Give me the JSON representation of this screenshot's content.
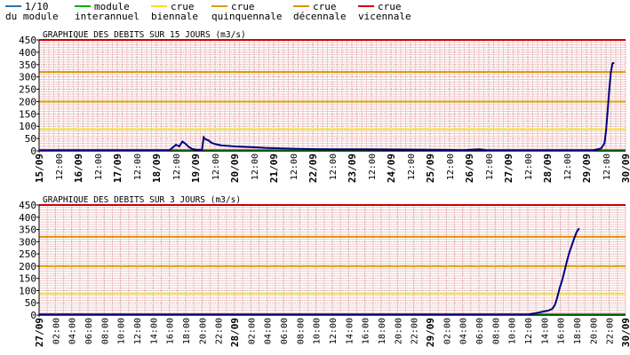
{
  "colors": {
    "module_10": "#1f77b4",
    "module": "#00b000",
    "biennale": "#f0e030",
    "quinquennale": "#d8a000",
    "decennale": "#e09000",
    "vicennale": "#cc0000",
    "flow": "#000080",
    "grid_major": "#d09090",
    "grid_minor": "#f0c8c8"
  },
  "legend": [
    {
      "line1": "1/10",
      "line2": "du module",
      "color_key": "module_10"
    },
    {
      "line1": "module",
      "line2": "interannuel",
      "color_key": "module"
    },
    {
      "line1": "crue",
      "line2": "biennale",
      "color_key": "biennale"
    },
    {
      "line1": "crue",
      "line2": "quinquennale",
      "color_key": "quinquennale"
    },
    {
      "line1": "crue",
      "line2": "décennale",
      "color_key": "decennale"
    },
    {
      "line1": "crue",
      "line2": "vicennale",
      "color_key": "vicennale"
    }
  ],
  "chart_data": [
    {
      "type": "line",
      "title": "GRAPHIQUE DES DEBITS SUR 15 JOURS (m3/s)",
      "ylim": [
        0,
        450
      ],
      "yticks": [
        0,
        50,
        100,
        150,
        200,
        250,
        300,
        350,
        400,
        450
      ],
      "xlim_hours": [
        0,
        360
      ],
      "xtick_labels": [
        "15/09",
        "12:00",
        "16/09",
        "12:00",
        "17/09",
        "12:00",
        "18/09",
        "12:00",
        "19/09",
        "12:00",
        "20/09",
        "12:00",
        "21/09",
        "12:00",
        "22/09",
        "12:00",
        "23/09",
        "12:00",
        "24/09",
        "12:00",
        "25/09",
        "12:00",
        "26/09",
        "12:00",
        "27/09",
        "12:00",
        "28/09",
        "12:00",
        "29/09",
        "12:00",
        "30/09"
      ],
      "thresholds": [
        {
          "name": "1/10 du module",
          "value": 0.5,
          "color_key": "module_10"
        },
        {
          "name": "module interannuel",
          "value": 3,
          "color_key": "module"
        },
        {
          "name": "crue biennale",
          "value": 88,
          "color_key": "biennale"
        },
        {
          "name": "crue quinquennale",
          "value": 200,
          "color_key": "quinquennale"
        },
        {
          "name": "crue décennale",
          "value": 320,
          "color_key": "decennale"
        },
        {
          "name": "crue vicennale",
          "value": 450,
          "color_key": "vicennale"
        }
      ],
      "series": [
        {
          "x_hours": [
            0,
            80,
            84,
            86,
            88,
            90,
            92,
            94,
            96,
            100,
            101,
            102,
            104,
            106,
            108,
            110,
            112,
            116,
            120,
            130,
            140,
            150,
            160,
            170,
            200,
            230,
            250,
            260,
            270,
            275,
            280,
            290,
            300,
            310,
            320,
            330,
            340,
            342,
            345,
            347,
            348,
            349,
            350,
            351,
            352,
            353
          ],
          "y": [
            2,
            2,
            25,
            18,
            38,
            28,
            15,
            8,
            5,
            4,
            55,
            48,
            42,
            32,
            28,
            25,
            22,
            20,
            18,
            15,
            12,
            10,
            8,
            7,
            6,
            5,
            4,
            3,
            6,
            3,
            2,
            2,
            2,
            2,
            2,
            2,
            3,
            5,
            10,
            30,
            80,
            160,
            250,
            320,
            355,
            358
          ]
        }
      ]
    },
    {
      "type": "line",
      "title": "GRAPHIQUE DES DEBITS SUR 3 JOURS (m3/s)",
      "ylim": [
        0,
        450
      ],
      "yticks": [
        0,
        50,
        100,
        150,
        200,
        250,
        300,
        350,
        400,
        450
      ],
      "xlim_hours": [
        0,
        72
      ],
      "xtick_labels": [
        "27/09",
        "02:00",
        "04:00",
        "06:00",
        "08:00",
        "10:00",
        "12:00",
        "14:00",
        "16:00",
        "18:00",
        "20:00",
        "22:00",
        "28/09",
        "02:00",
        "04:00",
        "06:00",
        "08:00",
        "10:00",
        "12:00",
        "14:00",
        "16:00",
        "18:00",
        "20:00",
        "22:00",
        "29/09",
        "02:00",
        "04:00",
        "06:00",
        "08:00",
        "10:00",
        "12:00",
        "14:00",
        "16:00",
        "18:00",
        "20:00",
        "22:00",
        "30/09"
      ],
      "thresholds": [
        {
          "name": "1/10 du module",
          "value": 0.5,
          "color_key": "module_10"
        },
        {
          "name": "module interannuel",
          "value": 3,
          "color_key": "module"
        },
        {
          "name": "crue biennale",
          "value": 88,
          "color_key": "biennale"
        },
        {
          "name": "crue quinquennale",
          "value": 200,
          "color_key": "quinquennale"
        },
        {
          "name": "crue décennale",
          "value": 320,
          "color_key": "decennale"
        },
        {
          "name": "crue vicennale",
          "value": 450,
          "color_key": "vicennale"
        }
      ],
      "series": [
        {
          "x_hours": [
            0,
            24,
            48,
            60,
            61,
            62,
            62.5,
            63,
            63.3,
            63.6,
            63.9,
            64.2,
            64.5,
            64.8,
            65.1,
            65.4,
            65.7,
            66,
            66.3
          ],
          "y": [
            2,
            2,
            2,
            2,
            8,
            15,
            18,
            25,
            40,
            70,
            110,
            140,
            180,
            220,
            255,
            285,
            315,
            340,
            355
          ]
        }
      ]
    }
  ]
}
